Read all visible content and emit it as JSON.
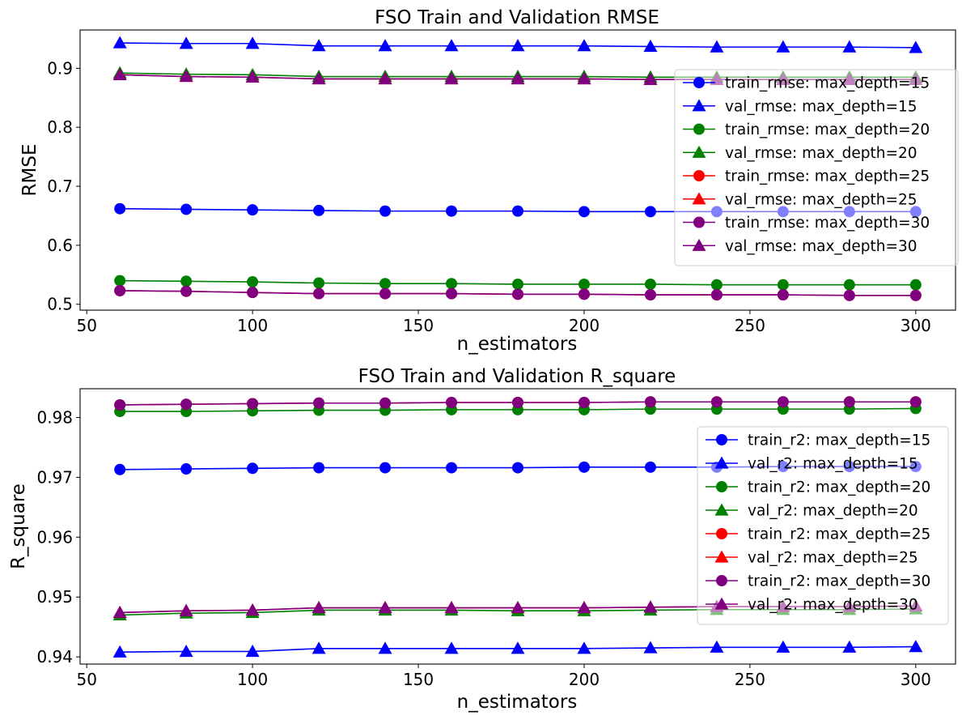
{
  "chart_data": [
    {
      "type": "line",
      "title": "FSO Train and Validation RMSE",
      "xlabel": "n_estimators",
      "ylabel": "RMSE",
      "xlim": [
        48,
        312
      ],
      "ylim": [
        0.49,
        0.965
      ],
      "xticks": [
        50,
        100,
        150,
        200,
        250,
        300
      ],
      "xtick_labels": [
        "50",
        "100",
        "150",
        "200",
        "250",
        "300"
      ],
      "yticks": [
        0.5,
        0.6,
        0.7,
        0.8,
        0.9
      ],
      "ytick_labels": [
        "0.5",
        "0.6",
        "0.7",
        "0.8",
        "0.9"
      ],
      "grid": false,
      "legend_position": "right",
      "x": [
        60,
        80,
        100,
        120,
        140,
        160,
        180,
        200,
        220,
        240,
        260,
        280,
        300
      ],
      "series": [
        {
          "name": "train_rmse: max_depth=15",
          "color": "#0000ff",
          "marker": "circle",
          "values": [
            0.662,
            0.661,
            0.66,
            0.659,
            0.658,
            0.658,
            0.658,
            0.657,
            0.657,
            0.657,
            0.657,
            0.657,
            0.657
          ]
        },
        {
          "name": "val_rmse: max_depth=15",
          "color": "#0000ff",
          "marker": "triangle",
          "values": [
            0.943,
            0.942,
            0.942,
            0.938,
            0.938,
            0.938,
            0.938,
            0.938,
            0.937,
            0.936,
            0.936,
            0.936,
            0.935
          ]
        },
        {
          "name": "train_rmse: max_depth=20",
          "color": "#008000",
          "marker": "circle",
          "values": [
            0.54,
            0.539,
            0.538,
            0.536,
            0.535,
            0.535,
            0.534,
            0.534,
            0.534,
            0.533,
            0.533,
            0.533,
            0.533
          ]
        },
        {
          "name": "val_rmse: max_depth=20",
          "color": "#008000",
          "marker": "triangle",
          "values": [
            0.892,
            0.89,
            0.889,
            0.886,
            0.886,
            0.886,
            0.886,
            0.886,
            0.885,
            0.885,
            0.885,
            0.885,
            0.885
          ]
        },
        {
          "name": "train_rmse: max_depth=25",
          "color": "#ff0000",
          "marker": "circle",
          "values": [
            0.523,
            0.522,
            0.52,
            0.518,
            0.518,
            0.518,
            0.517,
            0.517,
            0.516,
            0.516,
            0.516,
            0.515,
            0.515
          ]
        },
        {
          "name": "val_rmse: max_depth=25",
          "color": "#ff0000",
          "marker": "triangle",
          "values": [
            0.889,
            0.886,
            0.885,
            0.882,
            0.882,
            0.882,
            0.882,
            0.882,
            0.881,
            0.881,
            0.881,
            0.881,
            0.881
          ]
        },
        {
          "name": "train_rmse: max_depth=30",
          "color": "#800080",
          "marker": "circle",
          "values": [
            0.523,
            0.522,
            0.52,
            0.518,
            0.518,
            0.518,
            0.517,
            0.517,
            0.516,
            0.516,
            0.516,
            0.515,
            0.515
          ]
        },
        {
          "name": "val_rmse: max_depth=30",
          "color": "#800080",
          "marker": "triangle",
          "values": [
            0.889,
            0.886,
            0.885,
            0.882,
            0.882,
            0.882,
            0.882,
            0.882,
            0.881,
            0.881,
            0.881,
            0.881,
            0.881
          ]
        }
      ]
    },
    {
      "type": "line",
      "title": "FSO Train and Validation R_square",
      "xlabel": "n_estimators",
      "ylabel": "R_square",
      "xlim": [
        48,
        312
      ],
      "ylim": [
        0.9388,
        0.9848
      ],
      "xticks": [
        50,
        100,
        150,
        200,
        250,
        300
      ],
      "xtick_labels": [
        "50",
        "100",
        "150",
        "200",
        "250",
        "300"
      ],
      "yticks": [
        0.94,
        0.95,
        0.96,
        0.97,
        0.98
      ],
      "ytick_labels": [
        "0.94",
        "0.95",
        "0.96",
        "0.97",
        "0.98"
      ],
      "grid": false,
      "legend_position": "right",
      "x": [
        60,
        80,
        100,
        120,
        140,
        160,
        180,
        200,
        220,
        240,
        260,
        280,
        300
      ],
      "series": [
        {
          "name": "train_r2: max_depth=15",
          "color": "#0000ff",
          "marker": "circle",
          "values": [
            0.9713,
            0.9714,
            0.9715,
            0.9716,
            0.9716,
            0.9716,
            0.9716,
            0.9717,
            0.9717,
            0.9717,
            0.9718,
            0.9718,
            0.9718
          ]
        },
        {
          "name": "val_r2: max_depth=15",
          "color": "#0000ff",
          "marker": "triangle",
          "values": [
            0.9408,
            0.9409,
            0.9409,
            0.9414,
            0.9414,
            0.9414,
            0.9414,
            0.9414,
            0.9415,
            0.9416,
            0.9416,
            0.9416,
            0.9417
          ]
        },
        {
          "name": "train_r2: max_depth=20",
          "color": "#008000",
          "marker": "circle",
          "values": [
            0.981,
            0.981,
            0.9811,
            0.9812,
            0.9812,
            0.9813,
            0.9813,
            0.9813,
            0.9814,
            0.9814,
            0.9814,
            0.9814,
            0.9815
          ]
        },
        {
          "name": "val_r2: max_depth=20",
          "color": "#008000",
          "marker": "triangle",
          "values": [
            0.947,
            0.9473,
            0.9474,
            0.9478,
            0.9478,
            0.9478,
            0.9477,
            0.9477,
            0.9478,
            0.9479,
            0.9479,
            0.9479,
            0.948
          ]
        },
        {
          "name": "train_r2: max_depth=25",
          "color": "#ff0000",
          "marker": "circle",
          "values": [
            0.9821,
            0.9822,
            0.9823,
            0.9824,
            0.9824,
            0.9825,
            0.9825,
            0.9825,
            0.9826,
            0.9826,
            0.9826,
            0.9826,
            0.9826
          ]
        },
        {
          "name": "val_r2: max_depth=25",
          "color": "#ff0000",
          "marker": "triangle",
          "values": [
            0.9474,
            0.9477,
            0.9478,
            0.9482,
            0.9482,
            0.9482,
            0.9482,
            0.9482,
            0.9483,
            0.9484,
            0.9484,
            0.9484,
            0.9485
          ]
        },
        {
          "name": "train_r2: max_depth=30",
          "color": "#800080",
          "marker": "circle",
          "values": [
            0.9821,
            0.9822,
            0.9823,
            0.9824,
            0.9824,
            0.9825,
            0.9825,
            0.9825,
            0.9826,
            0.9826,
            0.9826,
            0.9826,
            0.9826
          ]
        },
        {
          "name": "val_r2: max_depth=30",
          "color": "#800080",
          "marker": "triangle",
          "values": [
            0.9474,
            0.9477,
            0.9478,
            0.9482,
            0.9482,
            0.9482,
            0.9482,
            0.9482,
            0.9483,
            0.9484,
            0.9484,
            0.9484,
            0.9485
          ]
        }
      ]
    }
  ]
}
